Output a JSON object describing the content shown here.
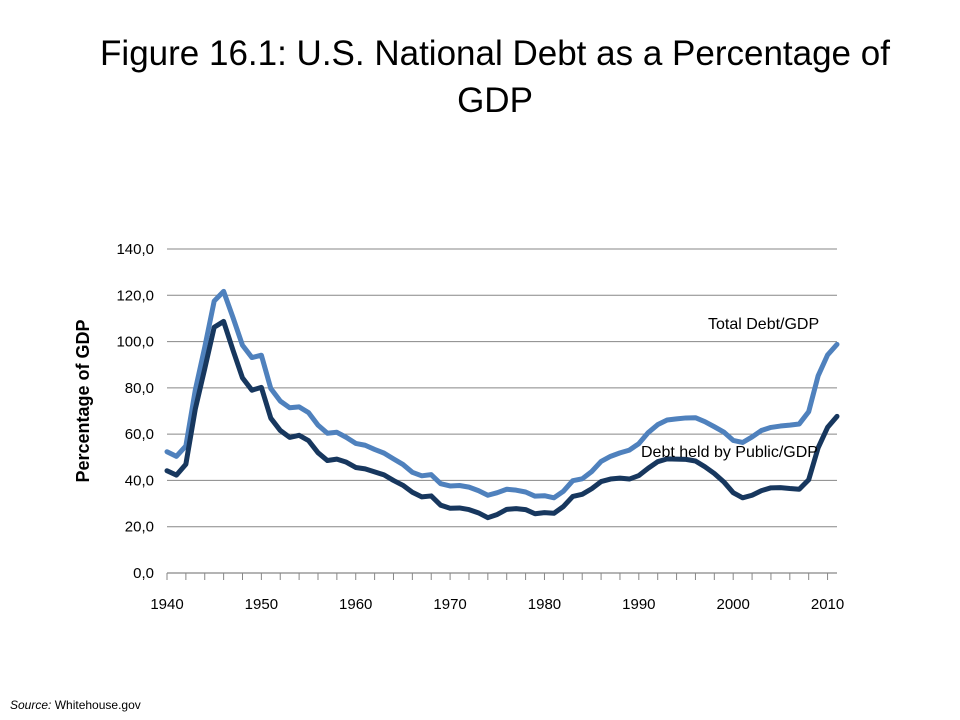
{
  "slide": {
    "title": "Figure 16.1: U.S. National Debt as a Percentage of GDP"
  },
  "source": {
    "prefix": "Source:",
    "text": "Whitehouse.gov"
  },
  "chart_data": {
    "type": "line",
    "title": "",
    "ylabel": "Percentage of GDP",
    "xlabel": "",
    "xlim": [
      1940,
      2011
    ],
    "ylim": [
      0,
      140
    ],
    "x_ticks": [
      "1940",
      "1950",
      "1960",
      "1970",
      "1980",
      "1990",
      "2000",
      "2010"
    ],
    "y_ticks": [
      "0,0",
      "20,0",
      "40,0",
      "60,0",
      "80,0",
      "100,0",
      "120,0",
      "140,0"
    ],
    "y_tick_values": [
      0,
      20,
      40,
      60,
      80,
      100,
      120,
      140
    ],
    "grid": "horizontal",
    "legend": "none",
    "x": [
      1940,
      1941,
      1942,
      1943,
      1944,
      1945,
      1946,
      1947,
      1948,
      1949,
      1950,
      1951,
      1952,
      1953,
      1954,
      1955,
      1956,
      1957,
      1958,
      1959,
      1960,
      1961,
      1962,
      1963,
      1964,
      1965,
      1966,
      1967,
      1968,
      1969,
      1970,
      1971,
      1972,
      1973,
      1974,
      1975,
      1976,
      1977,
      1978,
      1979,
      1980,
      1981,
      1982,
      1983,
      1984,
      1985,
      1986,
      1987,
      1988,
      1989,
      1990,
      1991,
      1992,
      1993,
      1994,
      1995,
      1996,
      1997,
      1998,
      1999,
      2000,
      2001,
      2002,
      2003,
      2004,
      2005,
      2006,
      2007,
      2008,
      2009,
      2010,
      2011
    ],
    "series": [
      {
        "name": "Total Debt/GDP",
        "color": "#4f81bd",
        "values": [
          52.4,
          50.4,
          54.9,
          79.1,
          97.6,
          117.5,
          121.7,
          110.3,
          98.4,
          93.1,
          94.1,
          79.7,
          74.3,
          71.4,
          71.8,
          69.3,
          63.9,
          60.4,
          60.8,
          58.6,
          56.0,
          55.2,
          53.4,
          51.8,
          49.3,
          46.9,
          43.5,
          42.0,
          42.5,
          38.6,
          37.6,
          37.8,
          37.1,
          35.6,
          33.6,
          34.7,
          36.2,
          35.8,
          35.0,
          33.2,
          33.4,
          32.5,
          35.3,
          39.9,
          40.7,
          43.8,
          48.2,
          50.4,
          51.9,
          53.1,
          55.9,
          60.7,
          64.1,
          66.1,
          66.6,
          67.0,
          67.1,
          65.4,
          63.2,
          60.9,
          57.3,
          56.4,
          58.8,
          61.6,
          62.9,
          63.5,
          63.9,
          64.4,
          69.7,
          85.2,
          94.2,
          98.8
        ]
      },
      {
        "name": "Debt held by Public/GDP",
        "color": "#17375e",
        "values": [
          44.2,
          42.3,
          47.0,
          70.9,
          88.3,
          106.2,
          108.7,
          96.2,
          84.3,
          79.0,
          80.2,
          66.9,
          61.6,
          58.6,
          59.5,
          57.2,
          52.0,
          48.6,
          49.2,
          47.9,
          45.6,
          45.0,
          43.7,
          42.4,
          40.0,
          37.9,
          34.9,
          32.9,
          33.3,
          29.3,
          28.0,
          28.1,
          27.4,
          26.0,
          23.9,
          25.3,
          27.5,
          27.8,
          27.4,
          25.6,
          26.1,
          25.8,
          28.7,
          33.1,
          34.0,
          36.4,
          39.5,
          40.6,
          41.0,
          40.6,
          42.1,
          45.3,
          48.1,
          49.3,
          49.2,
          49.1,
          48.4,
          45.9,
          43.0,
          39.4,
          34.7,
          32.5,
          33.6,
          35.6,
          36.8,
          36.9,
          36.5,
          36.2,
          40.3,
          54.1,
          62.9,
          67.7
        ]
      }
    ]
  }
}
